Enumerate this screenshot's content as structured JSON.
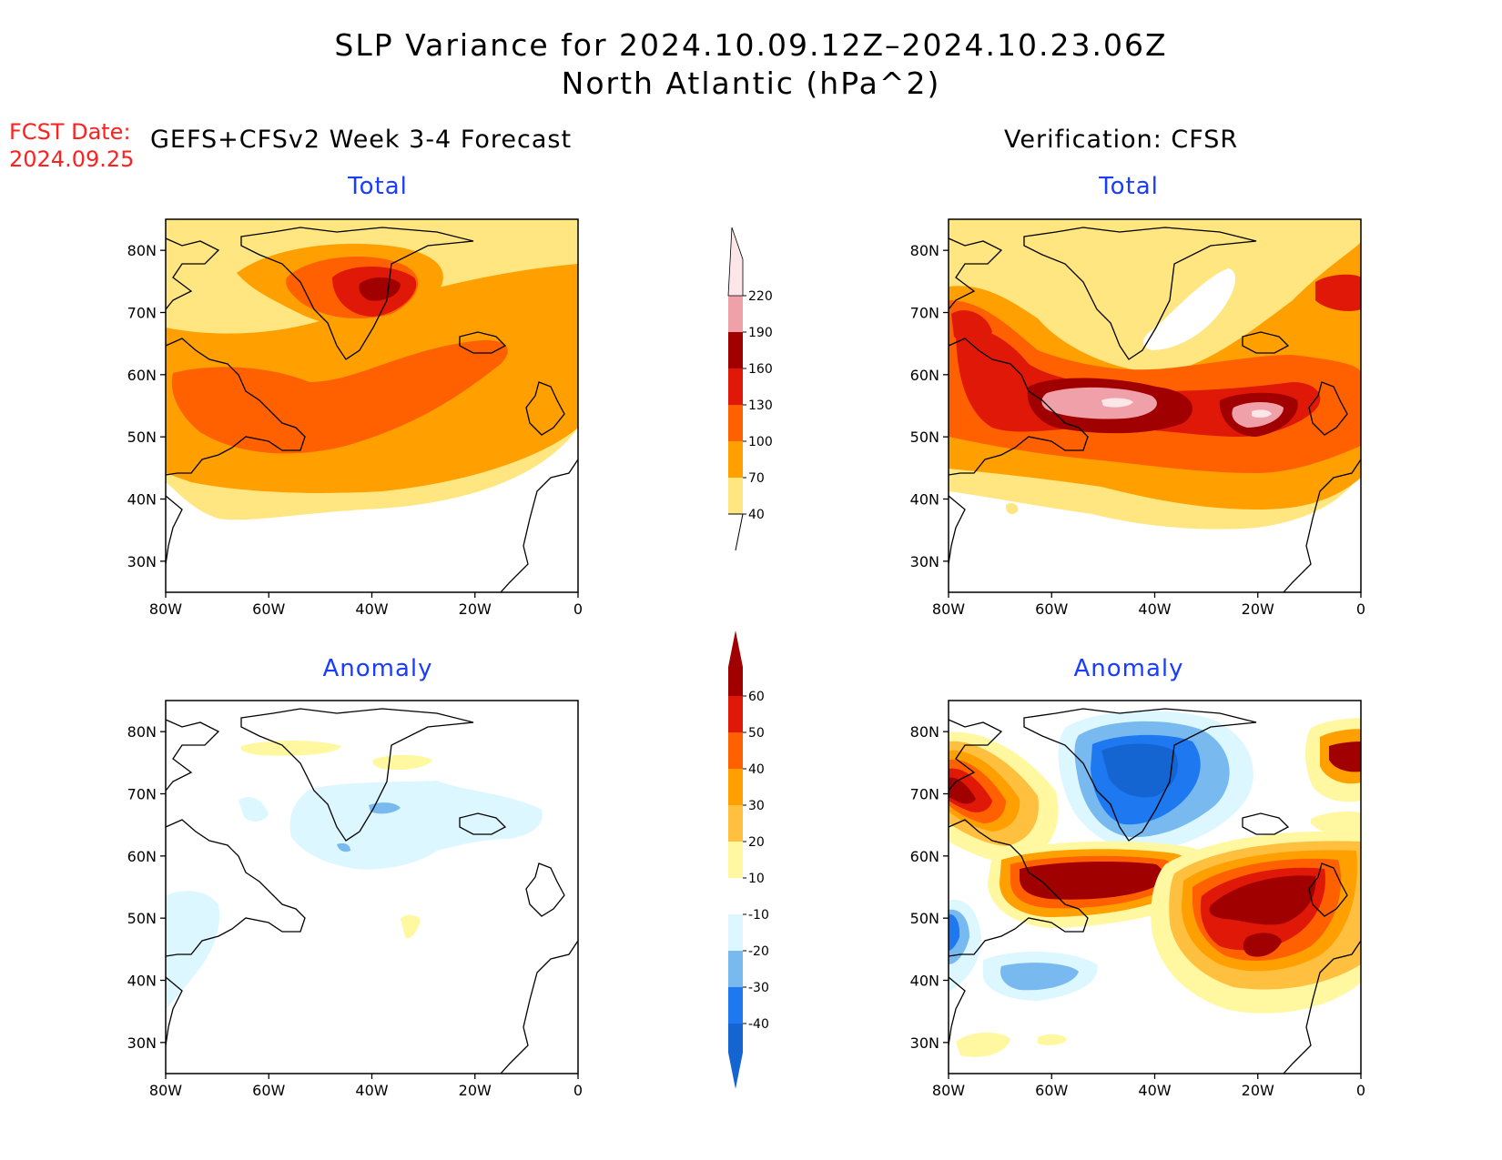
{
  "header": {
    "title_line1": "SLP Variance for 2024.10.09.12Z–2024.10.23.06Z",
    "title_line2": "North Atlantic (hPa^2)",
    "fcst_label": "FCST Date:",
    "fcst_date": "2024.09.25",
    "left_heading": "GEFS+CFSv2 Week 3-4 Forecast",
    "right_heading": "Verification: CFSR"
  },
  "panels": {
    "top_left_title": "Total",
    "top_right_title": "Total",
    "bottom_left_title": "Anomaly",
    "bottom_right_title": "Anomaly"
  },
  "axes": {
    "lat_ticks": [
      "80N",
      "70N",
      "60N",
      "50N",
      "40N",
      "30N"
    ],
    "lon_ticks": [
      "80W",
      "60W",
      "40W",
      "20W",
      "0"
    ],
    "lon_range": [
      -80,
      0
    ],
    "lat_range": [
      25,
      85
    ]
  },
  "colorbars": {
    "total": {
      "labels": [
        "40",
        "70",
        "100",
        "130",
        "160",
        "190",
        "220"
      ],
      "colors": [
        "#ffe680",
        "#ffa000",
        "#ff6000",
        "#e01808",
        "#a00000",
        "#f0a0a8",
        "#fde6e8"
      ]
    },
    "anomaly": {
      "labels": [
        "-40",
        "-30",
        "-20",
        "-10",
        "10",
        "20",
        "30",
        "40",
        "50",
        "60"
      ],
      "colors": [
        "#1464d2",
        "#1e78f0",
        "#78b9f0",
        "#dcf7ff",
        "#ffffff",
        "#fff8a0",
        "#ffc040",
        "#ffa000",
        "#ff6000",
        "#e01808",
        "#a00000"
      ]
    }
  },
  "fills": {
    "land": "#ffffff",
    "coast": "#000000"
  }
}
